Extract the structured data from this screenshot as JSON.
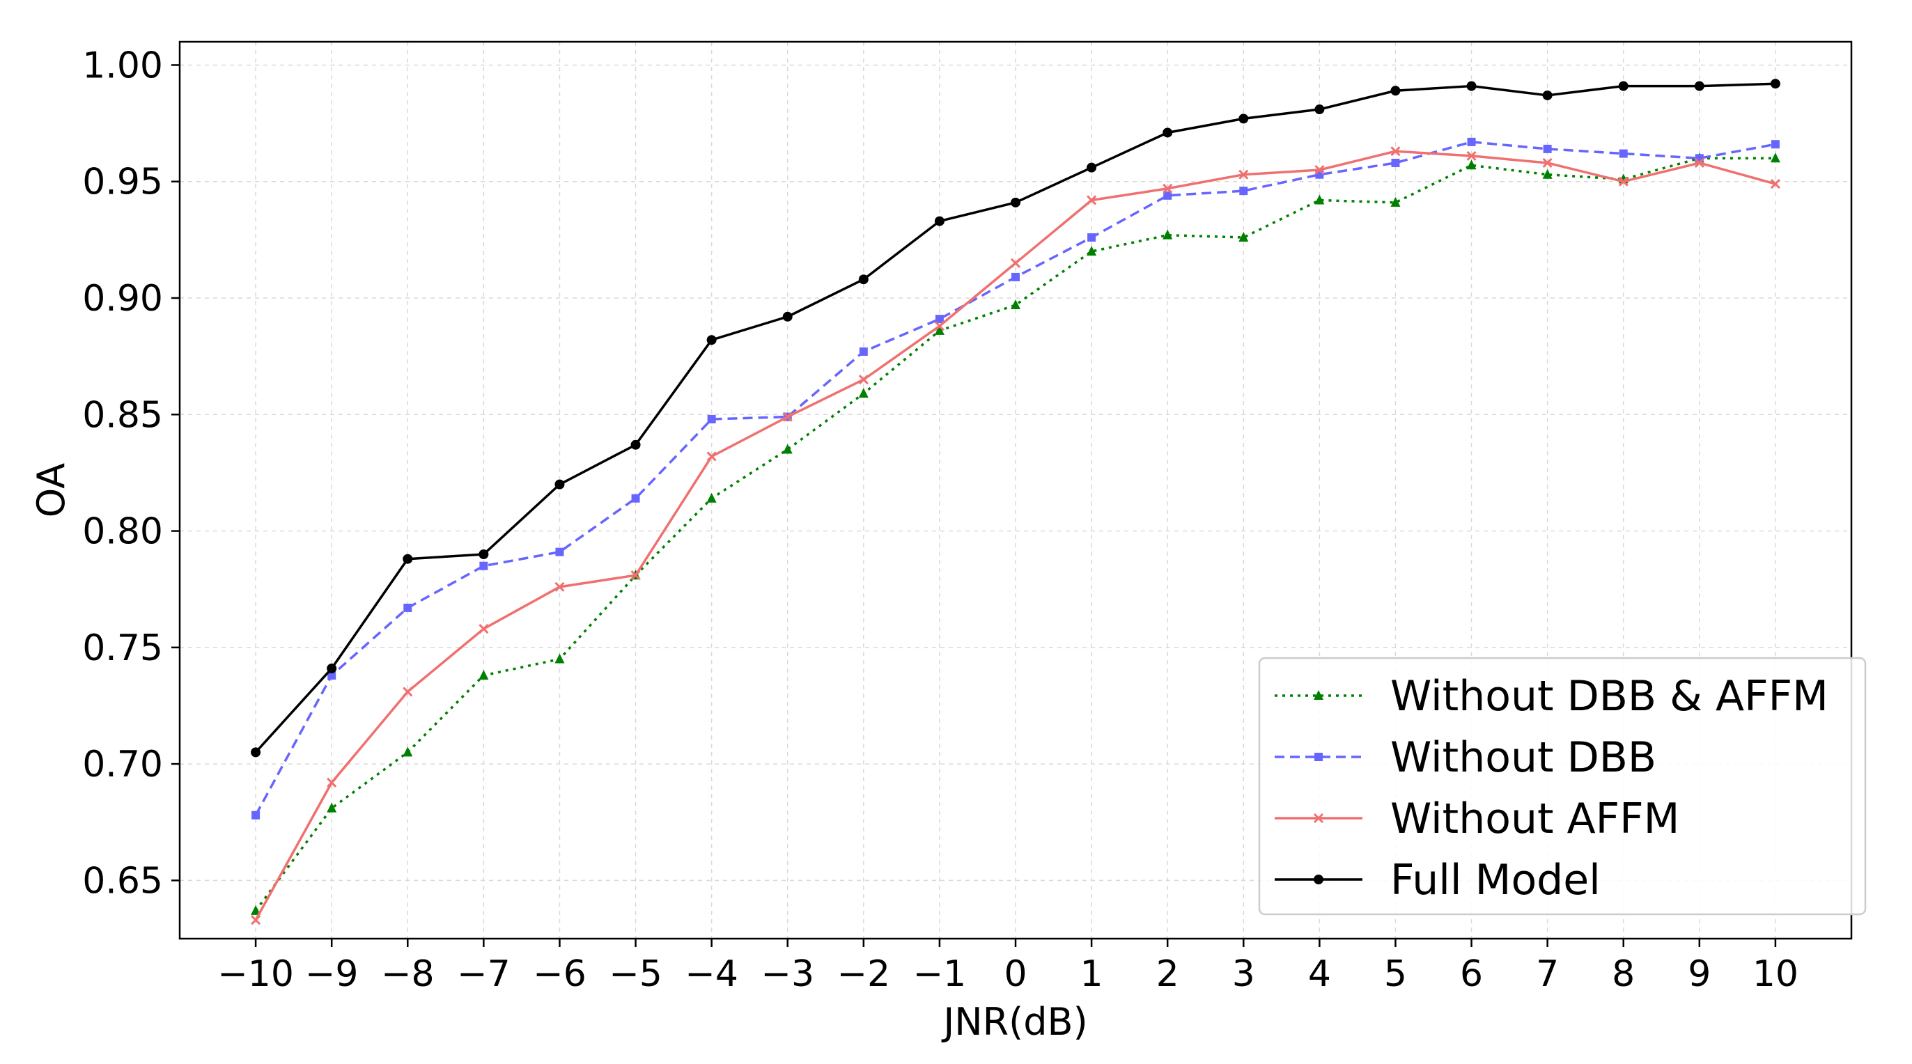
{
  "chart_data": {
    "type": "line",
    "title": "",
    "xlabel": "JNR(dB)",
    "ylabel": "OA",
    "x": [
      -10,
      -9,
      -8,
      -7,
      -6,
      -5,
      -4,
      -3,
      -2,
      -1,
      0,
      1,
      2,
      3,
      4,
      5,
      6,
      7,
      8,
      9,
      10
    ],
    "x_tick_labels": [
      "−10",
      "−9",
      "−8",
      "−7",
      "−6",
      "−5",
      "−4",
      "−3",
      "−2",
      "−1",
      "0",
      "1",
      "2",
      "3",
      "4",
      "5",
      "6",
      "7",
      "8",
      "9",
      "10"
    ],
    "y_tick_labels": [
      "0.65",
      "0.70",
      "0.75",
      "0.80",
      "0.85",
      "0.90",
      "0.95",
      "1.00"
    ],
    "y_ticks": [
      0.65,
      0.7,
      0.75,
      0.8,
      0.85,
      0.9,
      0.95,
      1.0
    ],
    "xlim": [
      -11,
      11
    ],
    "ylim": [
      0.625,
      1.01
    ],
    "grid": true,
    "legend_position": "bottom-right",
    "series": [
      {
        "name": "Without DBB & AFFM",
        "color": "#008000",
        "line_style": "dotted",
        "marker": "triangle",
        "values": [
          0.637,
          0.681,
          0.705,
          0.738,
          0.745,
          0.781,
          0.814,
          0.835,
          0.859,
          0.886,
          0.897,
          0.92,
          0.927,
          0.926,
          0.942,
          0.941,
          0.957,
          0.953,
          0.951,
          0.96,
          0.96
        ]
      },
      {
        "name": "Without DBB",
        "color": "#6666ff",
        "line_style": "dashed",
        "marker": "square",
        "values": [
          0.678,
          0.738,
          0.767,
          0.785,
          0.791,
          0.814,
          0.848,
          0.849,
          0.877,
          0.891,
          0.909,
          0.926,
          0.944,
          0.946,
          0.953,
          0.958,
          0.967,
          0.964,
          0.962,
          0.96,
          0.966
        ]
      },
      {
        "name": "Without AFFM",
        "color": "#f07070",
        "line_style": "solid",
        "marker": "x",
        "values": [
          0.633,
          0.692,
          0.731,
          0.758,
          0.776,
          0.781,
          0.832,
          0.849,
          0.865,
          0.888,
          0.915,
          0.942,
          0.947,
          0.953,
          0.955,
          0.963,
          0.961,
          0.958,
          0.95,
          0.958,
          0.949
        ]
      },
      {
        "name": "Full Model",
        "color": "#000000",
        "line_style": "solid",
        "marker": "circle",
        "values": [
          0.705,
          0.741,
          0.788,
          0.79,
          0.82,
          0.837,
          0.882,
          0.892,
          0.908,
          0.933,
          0.941,
          0.956,
          0.971,
          0.977,
          0.981,
          0.989,
          0.991,
          0.987,
          0.991,
          0.991,
          0.992
        ]
      }
    ]
  }
}
